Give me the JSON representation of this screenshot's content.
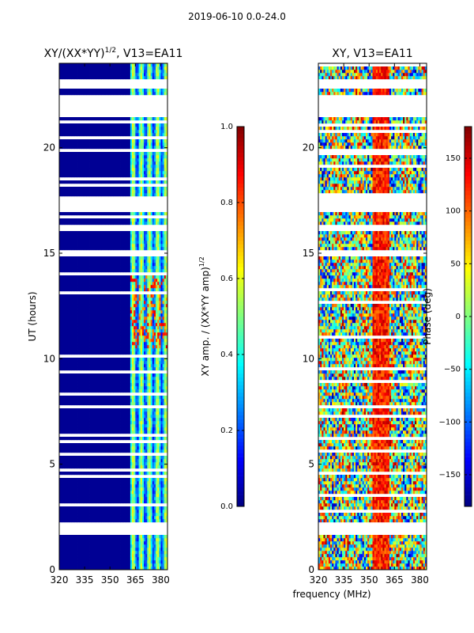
{
  "figure": {
    "suptitle": "2019-06-10 0.0-24.0",
    "shared_xlabel": "frequency (MHz)"
  },
  "chart_data": [
    {
      "type": "heatmap",
      "title_main": "XY/(XX*YY)",
      "title_exp": "1/2",
      "title_suffix": ", V13=EA11",
      "ylabel": "UT (hours)",
      "xlim": [
        320,
        384
      ],
      "ylim": [
        0,
        24
      ],
      "xticks": [
        320,
        335,
        350,
        365,
        380
      ],
      "yticks": [
        0,
        5,
        10,
        15,
        20
      ],
      "colorbar": {
        "label_main": "XY amp. / (XX*YY amp)",
        "label_exp": "1/2",
        "range": [
          0.0,
          1.0
        ],
        "ticks": [
          "0.0",
          "0.2",
          "0.4",
          "0.6",
          "0.8",
          "1.0"
        ],
        "tick_values": [
          0.0,
          0.2,
          0.4,
          0.6,
          0.8,
          1.0
        ]
      },
      "data_gaps_hours": [
        [
          1.7,
          2.2
        ],
        [
          17.0,
          17.7
        ],
        [
          21.4,
          22.5
        ],
        [
          23.0,
          23.2
        ],
        [
          16.0,
          16.4
        ],
        [
          15.0,
          15.1
        ]
      ],
      "note": "amplitude mostly ~0 below 362 MHz; ~0.3-0.6 in channels 362-382 MHz, peaks ~0.8 near 12-14 h"
    },
    {
      "type": "heatmap",
      "title": "XY, V13=EA11",
      "xlim": [
        320,
        384
      ],
      "ylim": [
        0,
        24
      ],
      "xticks": [
        320,
        335,
        350,
        365,
        380
      ],
      "yticks": [
        0,
        5,
        10,
        15,
        20
      ],
      "colorbar": {
        "label": "Phase (deg)",
        "range": [
          -180,
          180
        ],
        "ticks": [
          "150",
          "100",
          "50",
          "0",
          "−50",
          "−100",
          "−150"
        ],
        "tick_values": [
          150,
          100,
          50,
          0,
          -50,
          -100,
          -150
        ]
      },
      "data_gaps_hours": [
        [
          1.7,
          2.2
        ],
        [
          17.0,
          17.7
        ],
        [
          21.4,
          22.5
        ],
        [
          23.0,
          23.2
        ],
        [
          16.0,
          16.4
        ],
        [
          15.0,
          15.1
        ]
      ],
      "note": "phase varies across full range with vertical banding in frequency"
    }
  ]
}
